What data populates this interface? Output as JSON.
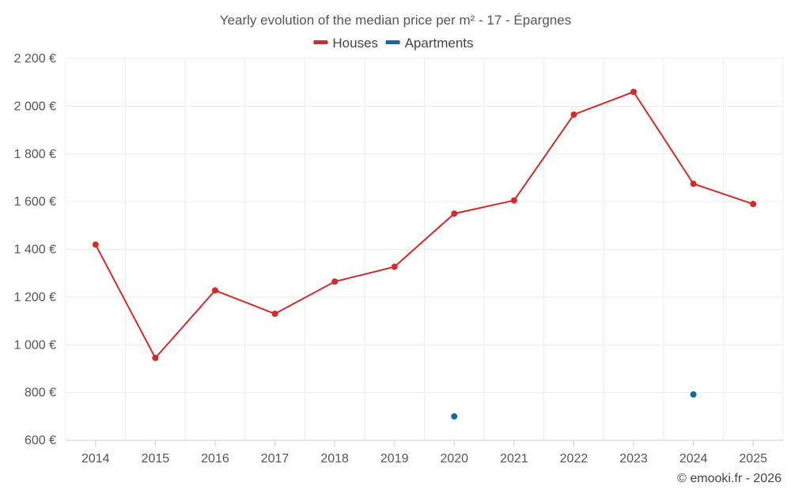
{
  "chart_data": {
    "type": "line",
    "title": "Yearly evolution of the median price per m² - 17 - Épargnes",
    "categories": [
      "2014",
      "2015",
      "2016",
      "2017",
      "2018",
      "2019",
      "2020",
      "2021",
      "2022",
      "2023",
      "2024",
      "2025"
    ],
    "series": [
      {
        "name": "Houses",
        "color": "#d32a2a",
        "values": [
          1420,
          945,
          1228,
          1130,
          1265,
          1327,
          1550,
          1605,
          1965,
          2060,
          1675,
          1590
        ]
      },
      {
        "name": "Apartments",
        "color": "#0e6aa0",
        "values": [
          null,
          null,
          null,
          null,
          null,
          null,
          700,
          null,
          null,
          null,
          792,
          null
        ]
      }
    ],
    "ylim": [
      600,
      2200
    ],
    "yticks": [
      600,
      800,
      1000,
      1200,
      1400,
      1600,
      1800,
      2000,
      2200
    ],
    "ytick_labels": [
      "600 €",
      "800 €",
      "1 000 €",
      "1 200 €",
      "1 400 €",
      "1 600 €",
      "1 800 €",
      "2 000 €",
      "2 200 €"
    ],
    "xlabel": "",
    "ylabel": "",
    "grid": true,
    "legend_position": "top-center"
  },
  "credit": "© emooki.fr - 2026"
}
